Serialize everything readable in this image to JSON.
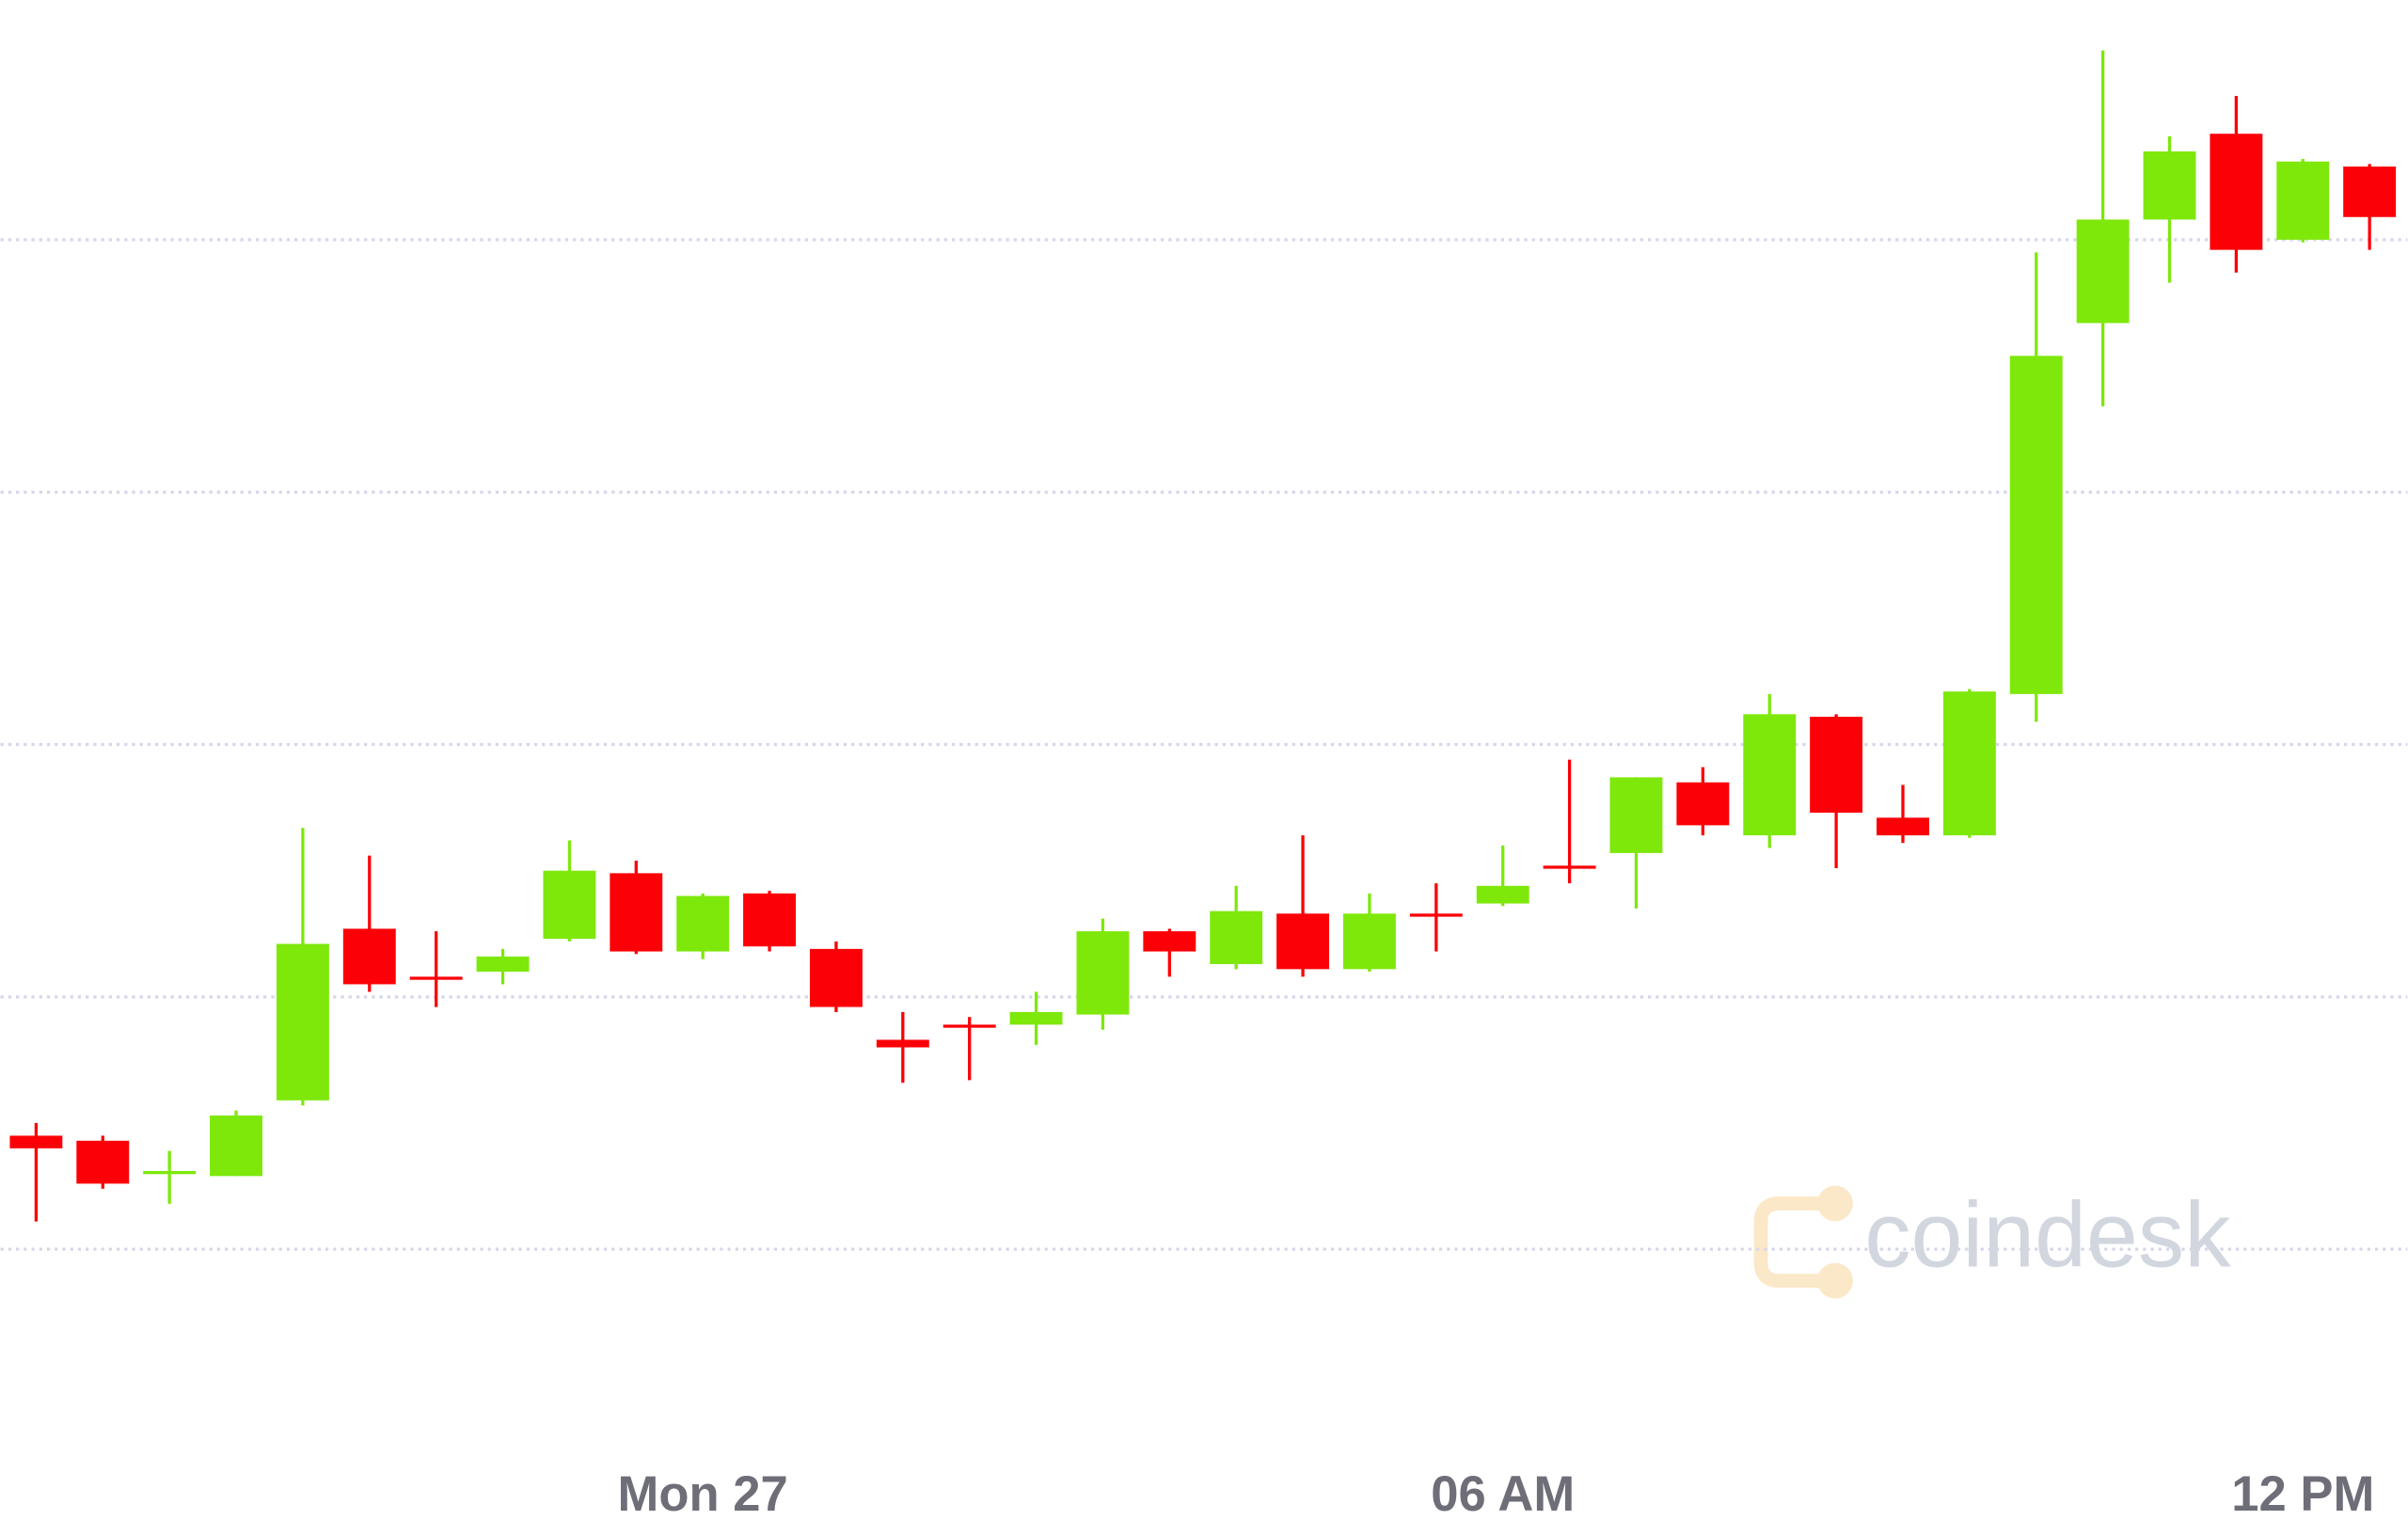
{
  "chart_data": {
    "type": "candlestick",
    "categories": [
      null,
      null,
      null,
      null,
      null,
      null,
      null,
      null,
      null,
      null,
      "Mon 27",
      null,
      null,
      null,
      null,
      null,
      null,
      null,
      null,
      null,
      null,
      null,
      "06 AM",
      null,
      null,
      null,
      null,
      null,
      null,
      null,
      null,
      null,
      null,
      null,
      "12 PM",
      null
    ],
    "open": [
      0.45,
      0.43,
      0.3,
      0.29,
      0.59,
      1.27,
      1.08,
      1.1,
      1.23,
      1.49,
      1.18,
      1.41,
      1.19,
      0.83,
      0.89,
      0.89,
      0.93,
      1.26,
      1.13,
      1.33,
      1.11,
      1.33,
      1.37,
      1.52,
      1.57,
      1.85,
      1.64,
      2.11,
      1.71,
      1.64,
      2.2,
      3.67,
      4.08,
      4.42,
      4.0,
      4.29
    ],
    "high": [
      0.5,
      0.45,
      0.39,
      0.55,
      1.67,
      1.56,
      1.26,
      1.19,
      1.62,
      1.54,
      1.41,
      1.42,
      1.22,
      0.94,
      0.92,
      1.02,
      1.31,
      1.27,
      1.44,
      1.64,
      1.41,
      1.45,
      1.6,
      1.94,
      1.87,
      1.91,
      2.2,
      2.12,
      1.84,
      2.22,
      3.95,
      4.75,
      4.41,
      4.57,
      4.32,
      4.3
    ],
    "low": [
      0.11,
      0.24,
      0.18,
      0.29,
      0.57,
      1.02,
      0.96,
      1.05,
      1.22,
      1.17,
      1.15,
      1.18,
      0.94,
      0.66,
      0.67,
      0.81,
      0.87,
      1.08,
      1.11,
      1.08,
      1.1,
      1.18,
      1.36,
      1.45,
      1.35,
      1.64,
      1.59,
      1.51,
      1.61,
      1.63,
      2.09,
      3.34,
      3.83,
      3.87,
      3.99,
      3.96
    ],
    "close": [
      0.4,
      0.26,
      0.31,
      0.53,
      1.21,
      1.05,
      1.07,
      1.16,
      1.5,
      1.18,
      1.4,
      1.2,
      0.96,
      0.8,
      0.88,
      0.94,
      1.26,
      1.18,
      1.34,
      1.11,
      1.33,
      1.32,
      1.44,
      1.51,
      1.87,
      1.68,
      2.12,
      1.73,
      1.64,
      2.21,
      3.54,
      4.08,
      4.35,
      3.96,
      4.31,
      4.09
    ],
    "up_color": "#7ee80b",
    "down_color": "#fb0006",
    "ylim": [
      -0.75,
      4.95
    ],
    "yticks": [
      0,
      1,
      2,
      3,
      4
    ],
    "grid": true,
    "watermark": "coindesk"
  }
}
